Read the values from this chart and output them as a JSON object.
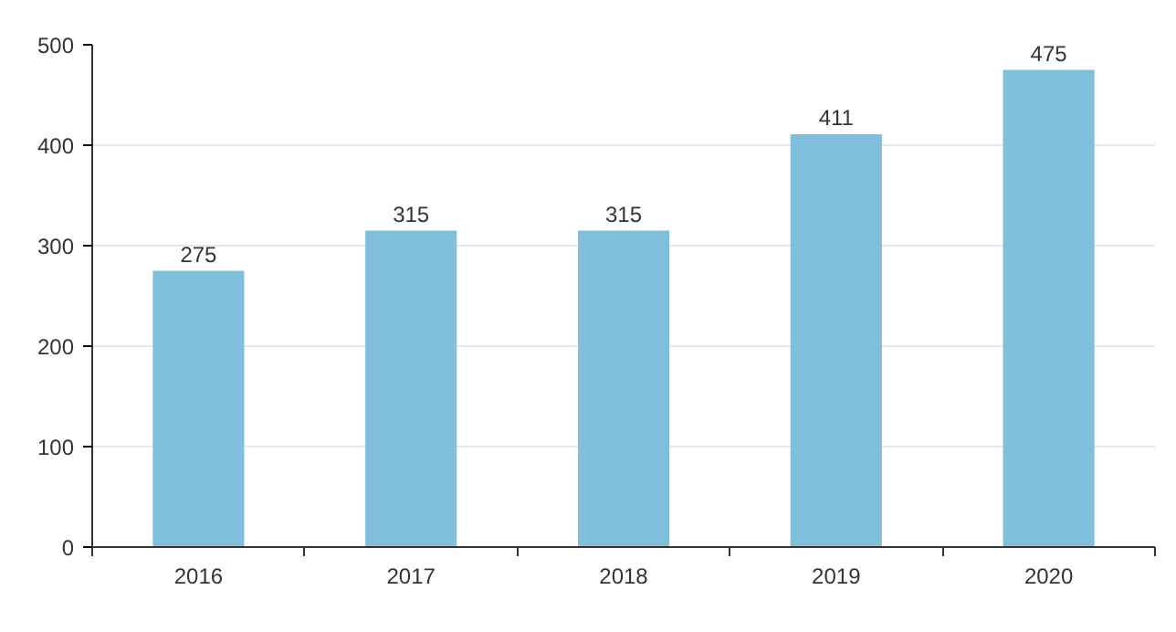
{
  "chart_data": {
    "type": "bar",
    "categories": [
      "2016",
      "2017",
      "2018",
      "2019",
      "2020"
    ],
    "values": [
      275,
      315,
      315,
      411,
      475
    ],
    "color": "#7fbfdc",
    "ylim": [
      0,
      500
    ],
    "yticks": [
      0,
      100,
      200,
      300,
      400,
      500
    ],
    "grid": "y",
    "data_labels": true
  }
}
